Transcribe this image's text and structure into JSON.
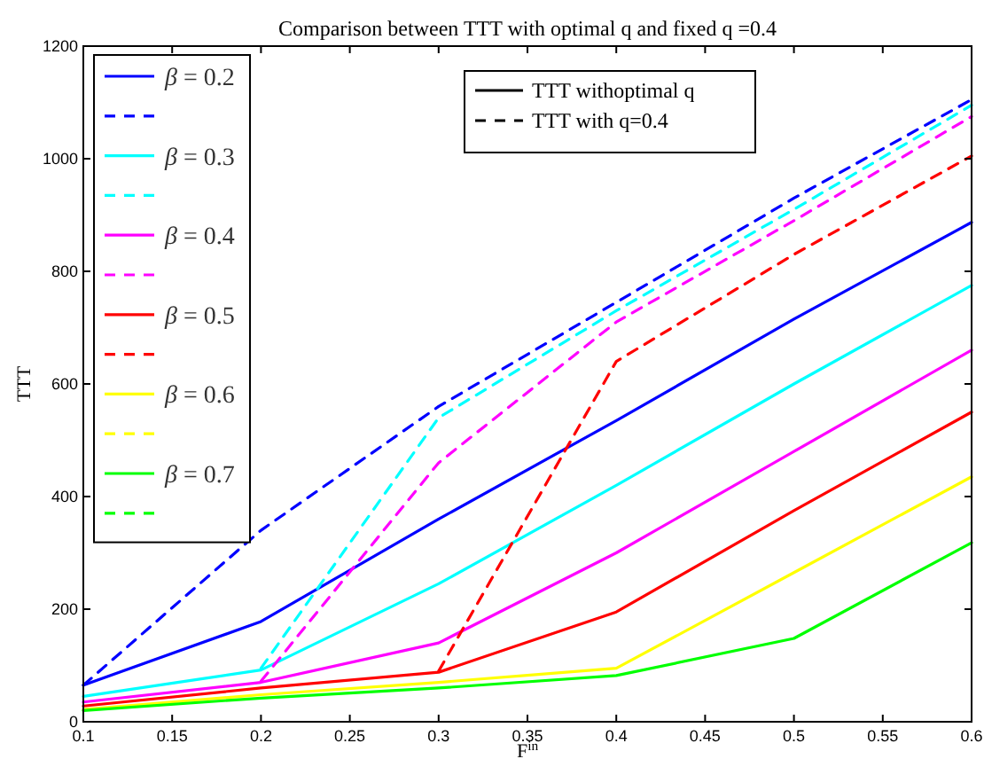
{
  "chart_data": {
    "type": "line",
    "title": "Comparison between TTT with optimal q and fixed q =0.4",
    "xlabel": "F$^{in}$",
    "ylabel": "TTT",
    "series": [
      {
        "name": "β = 0.2",
        "color": "#0000ff",
        "line_style": "solid",
        "x": [
          0.1,
          0.2,
          0.3,
          0.4,
          0.5,
          0.6
        ],
        "values": [
          65,
          178,
          360,
          535,
          715,
          887
        ]
      },
      {
        "color": "#0000ff",
        "line_style": "dashed",
        "x": [
          0.1,
          0.2,
          0.3,
          0.4,
          0.5,
          0.6
        ],
        "values": [
          65,
          340,
          560,
          745,
          930,
          1105
        ]
      },
      {
        "name": "β = 0.3",
        "color": "#00ffff",
        "line_style": "solid",
        "x": [
          0.1,
          0.2,
          0.3,
          0.4,
          0.5,
          0.6
        ],
        "values": [
          45,
          92,
          245,
          420,
          600,
          775
        ]
      },
      {
        "color": "#00ffff",
        "line_style": "dashed",
        "x": [
          0.2,
          0.3,
          0.4,
          0.5,
          0.6
        ],
        "values": [
          95,
          540,
          730,
          910,
          1095
        ]
      },
      {
        "name": "β = 0.4",
        "color": "#ff00ff",
        "line_style": "solid",
        "x": [
          0.1,
          0.2,
          0.3,
          0.4,
          0.5,
          0.6
        ],
        "values": [
          35,
          70,
          140,
          300,
          480,
          660
        ]
      },
      {
        "color": "#ff00ff",
        "line_style": "dashed",
        "x": [
          0.2,
          0.3,
          0.4,
          0.5,
          0.6
        ],
        "values": [
          72,
          460,
          710,
          890,
          1075
        ]
      },
      {
        "name": "β = 0.5",
        "color": "#ff0000",
        "line_style": "solid",
        "x": [
          0.1,
          0.2,
          0.3,
          0.4,
          0.5,
          0.6
        ],
        "values": [
          28,
          60,
          88,
          195,
          375,
          550
        ]
      },
      {
        "color": "#ff0000",
        "line_style": "dashed",
        "x": [
          0.3,
          0.4,
          0.5,
          0.6
        ],
        "values": [
          90,
          640,
          830,
          1005
        ]
      },
      {
        "name": "β = 0.6",
        "color": "#ffff00",
        "line_style": "solid",
        "x": [
          0.1,
          0.2,
          0.3,
          0.4,
          0.5,
          0.6
        ],
        "values": [
          22,
          48,
          70,
          95,
          265,
          435
        ]
      },
      {
        "color": "#ffff00",
        "line_style": "dashed"
      },
      {
        "name": "β = 0.7",
        "color": "#00ff00",
        "line_style": "solid",
        "x": [
          0.1,
          0.2,
          0.3,
          0.4,
          0.5,
          0.6
        ],
        "values": [
          20,
          42,
          60,
          82,
          148,
          318
        ]
      },
      {
        "color": "#00ff00",
        "line_style": "dashed"
      }
    ],
    "xlim": [
      0.1,
      0.6
    ],
    "xticks": [
      0.1,
      0.15,
      0.2,
      0.25,
      0.3,
      0.35,
      0.4,
      0.45,
      0.5,
      0.55,
      0.6
    ],
    "ylim": [
      0,
      1200
    ],
    "yticks": [
      0,
      200,
      400,
      600,
      800,
      1000,
      1200
    ],
    "grid": false,
    "legend": "top left",
    "annotations": [
      "TTT withoptimal q",
      "TTT with q=0.4"
    ]
  }
}
